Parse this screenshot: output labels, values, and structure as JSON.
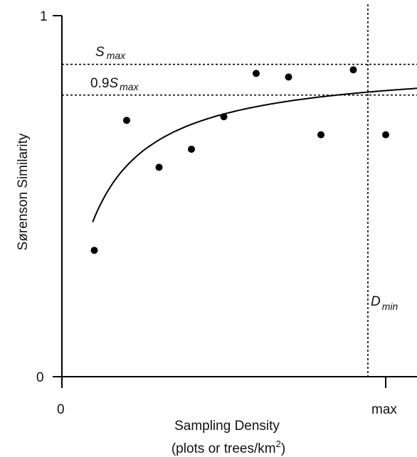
{
  "chart_data": {
    "type": "scatter",
    "x_tick_labels": [
      "0",
      "max"
    ],
    "y_tick_labels": [
      "0",
      "1"
    ],
    "xlabel_line1": "Sampling Density",
    "xlabel_line2_prefix": "(plots or trees/km",
    "xlabel_line2_sup": "2",
    "xlabel_line2_suffix": ")",
    "ylabel": "Sørenson Similarity",
    "xlim": [
      0,
      1.1
    ],
    "ylim": [
      0,
      1
    ],
    "points": [
      {
        "x": 0.1,
        "y": 0.35
      },
      {
        "x": 0.2,
        "y": 0.71
      },
      {
        "x": 0.3,
        "y": 0.58
      },
      {
        "x": 0.4,
        "y": 0.63
      },
      {
        "x": 0.5,
        "y": 0.72
      },
      {
        "x": 0.6,
        "y": 0.84
      },
      {
        "x": 0.7,
        "y": 0.83
      },
      {
        "x": 0.8,
        "y": 0.67
      },
      {
        "x": 0.9,
        "y": 0.85
      },
      {
        "x": 1.0,
        "y": 0.67
      }
    ],
    "fit_curve": {
      "model": "a*x/(b+x)",
      "a": 0.87,
      "b": 0.098,
      "x_range": [
        0.095,
        1.1
      ]
    },
    "reference_lines": {
      "s_max": {
        "y": 0.865,
        "label_base": "S",
        "label_sub": "max"
      },
      "s_90": {
        "y": 0.78,
        "label_prefix": "0.9",
        "label_base": "S",
        "label_sub": "max"
      },
      "d_min": {
        "x": 0.945,
        "label_base": "D",
        "label_sub": "min"
      }
    },
    "grid": false,
    "legend": "none"
  }
}
